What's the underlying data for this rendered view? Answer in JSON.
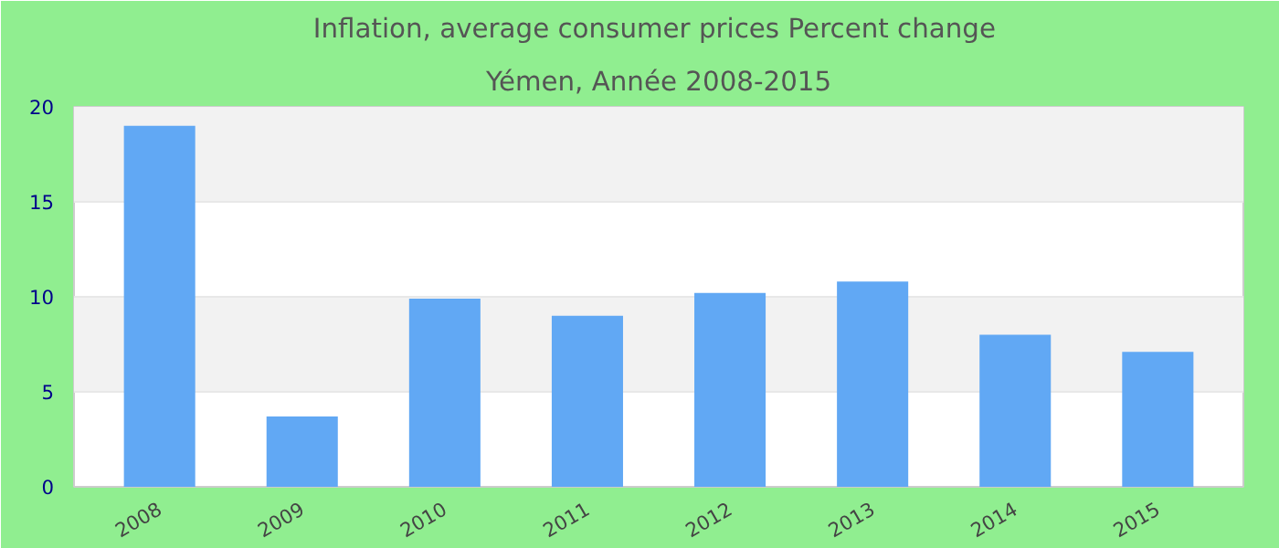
{
  "chart_data": {
    "type": "bar",
    "title": "Inflation, average consumer prices  Percent change",
    "subtitle": "Yémen, Année 2008-2015",
    "categories": [
      "2008",
      "2009",
      "2010",
      "2011",
      "2012",
      "2013",
      "2014",
      "2015"
    ],
    "values": [
      19.0,
      3.7,
      9.9,
      9.0,
      10.2,
      10.8,
      8.0,
      7.1
    ],
    "color": "#61a8f4",
    "ylim": [
      0,
      20
    ],
    "yticks": [
      0,
      5,
      10,
      15,
      20
    ],
    "grid": "y"
  }
}
